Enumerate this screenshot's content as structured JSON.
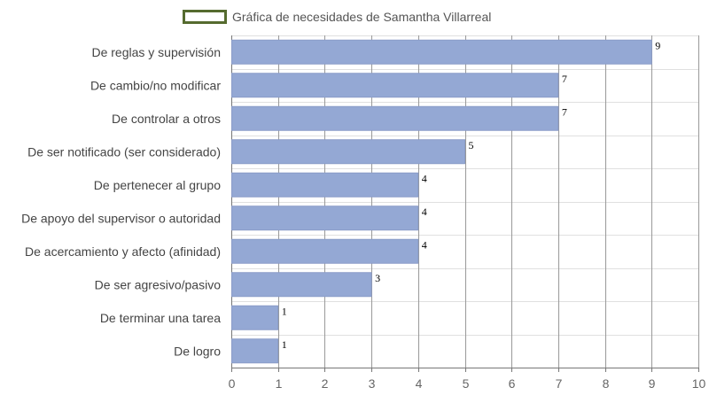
{
  "chart_data": {
    "type": "bar",
    "orientation": "horizontal",
    "categories": [
      "De reglas y supervisión",
      "De cambio/no modificar",
      "De controlar a otros",
      "De ser notificado (ser considerado)",
      "De pertenecer al grupo",
      "De apoyo del supervisor o autoridad",
      "De acercamiento y afecto (afinidad)",
      "De ser agresivo/pasivo",
      "De terminar una tarea",
      "De logro"
    ],
    "series": [
      {
        "name": "Gráfica de necesidades de Samantha Villarreal",
        "values": [
          9,
          7,
          7,
          5,
          4,
          4,
          4,
          3,
          1,
          1
        ]
      }
    ],
    "xlim": [
      0,
      10
    ],
    "xticks": [
      "0",
      "1",
      "2",
      "3",
      "4",
      "5",
      "6",
      "7",
      "8",
      "9",
      "10"
    ],
    "grid": true,
    "legend_position": "top",
    "colors": {
      "bar_fill": "#94a8d4",
      "bar_stroke": "#8a9cc8",
      "legend_border": "#556b2f",
      "grid": "#999999",
      "grid_horizontal": "#e0e0e0",
      "axis": "#777777",
      "text": "#444444",
      "tick": "#666666",
      "value_label": "#000000"
    }
  }
}
